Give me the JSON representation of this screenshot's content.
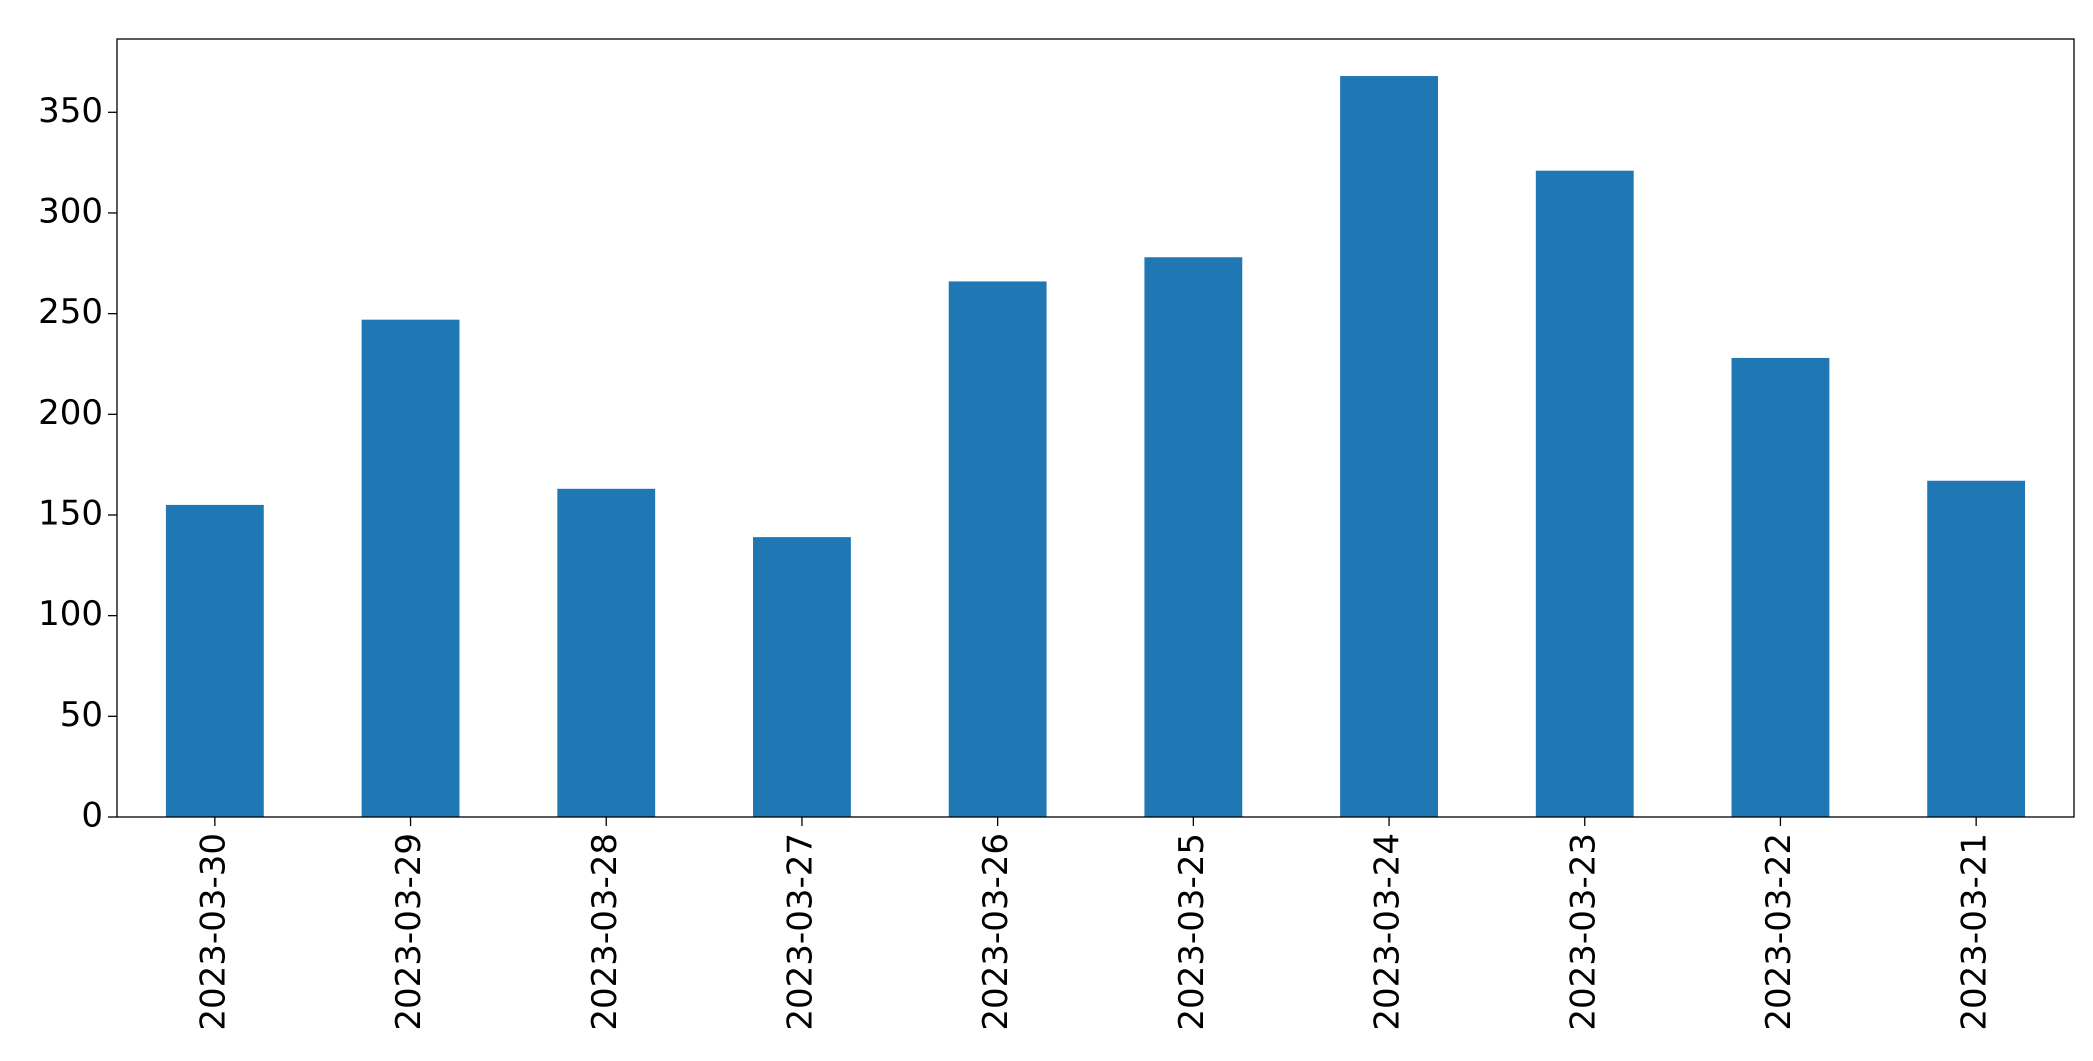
{
  "chart_data": {
    "type": "bar",
    "categories": [
      "2023-03-30",
      "2023-03-29",
      "2023-03-28",
      "2023-03-27",
      "2023-03-26",
      "2023-03-25",
      "2023-03-24",
      "2023-03-23",
      "2023-03-22",
      "2023-03-21"
    ],
    "values": [
      155,
      247,
      163,
      139,
      266,
      278,
      368,
      321,
      228,
      167
    ],
    "color": "#1f77b4",
    "ylim": [
      0,
      386.4
    ],
    "yticks": [
      0,
      50,
      100,
      150,
      200,
      250,
      300,
      350
    ],
    "grid": false
  }
}
